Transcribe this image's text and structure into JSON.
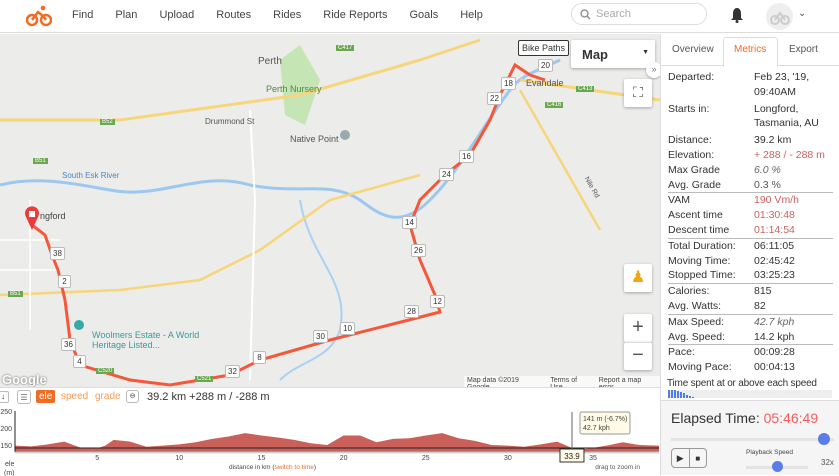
{
  "nav": {
    "links": [
      "Find",
      "Plan",
      "Upload",
      "Routes",
      "Rides",
      "Ride Reports",
      "Goals",
      "Help"
    ],
    "search_placeholder": "Search",
    "brand_color": "#f26b21"
  },
  "map": {
    "type_label": "Map",
    "bike_paths_label": "Bike Paths",
    "places": [
      "Perth",
      "Perth Nursery",
      "Drummond St",
      "Native Point",
      "South Esk River",
      "Evandale",
      "Nile Rd",
      "ngford",
      "Woolmers Estate - A World Heritage Listed..."
    ],
    "roads": [
      "C417",
      "B52",
      "C413",
      "C416",
      "B51",
      "C520",
      "C521",
      "B51"
    ],
    "attribution": [
      "Map data ©2019 Google",
      "Terms of Use",
      "Report a map error"
    ],
    "google": "Google",
    "markers": [
      "38",
      "2",
      "36",
      "4",
      "32",
      "8",
      "30",
      "10",
      "28",
      "12",
      "26",
      "14",
      "24",
      "16",
      "22",
      "18",
      "20"
    ],
    "route_color": "#f4573a"
  },
  "panel": {
    "tabs": [
      "Overview",
      "Metrics",
      "Export"
    ],
    "active_tab": "Metrics",
    "metrics": [
      {
        "k": "Departed:",
        "v": "Feb 23, '19, 09:40AM"
      },
      {
        "k": "Starts in:",
        "v": "Longford, Tasmania, AU"
      },
      {
        "k": "Distance:",
        "v": "39.2 km"
      },
      {
        "k": "Elevation:",
        "v": "+ 288 / - 288 m"
      },
      {
        "k": "Max Grade",
        "v": "6.0 %"
      },
      {
        "k": "Avg. Grade",
        "v": "0.3 %"
      },
      {
        "k": "VAM",
        "v": "190 Vm/h"
      },
      {
        "k": "Ascent time",
        "v": "01:30:48"
      },
      {
        "k": "Descent time",
        "v": "01:14:54"
      },
      {
        "k": "Total Duration:",
        "v": "06:11:05"
      },
      {
        "k": "Moving Time:",
        "v": "02:45:42"
      },
      {
        "k": "Stopped Time:",
        "v": "03:25:23"
      },
      {
        "k": "Calories:",
        "v": "815"
      },
      {
        "k": "Avg. Watts:",
        "v": "82"
      },
      {
        "k": "Max Speed:",
        "v": "42.7 kph"
      },
      {
        "k": "Avg. Speed:",
        "v": "14.2 kph"
      },
      {
        "k": "Pace:",
        "v": "00:09:28"
      },
      {
        "k": "Moving Pace:",
        "v": "00:04:13"
      }
    ],
    "speed_hist_title": "Time spent at or above each speed",
    "elapsed_label": "Elapsed Time:",
    "elapsed_value": "05:46:49",
    "playback_label": "Playback Speed",
    "playback_speed": "32x",
    "progress": 0.94,
    "speed_slider": 0.5
  },
  "elevation": {
    "modes": [
      "ele",
      "speed",
      "grade"
    ],
    "active_mode": "ele",
    "summary": "39.2 km +288 m / -288 m",
    "y_ticks": [
      "250",
      "200",
      "150"
    ],
    "x_ticks": [
      "5",
      "10",
      "15",
      "20",
      "25",
      "30",
      "35"
    ],
    "y_label": "ele",
    "y_unit": "(m)",
    "x_label": "distance in km (",
    "switch_label": "switch to time",
    "x_label_end": ")",
    "zoom_hint": "drag to zoom in",
    "cursor_km": "33.9",
    "tooltip": [
      "141 m (-6.7%)",
      "42.7 kph"
    ],
    "fill_color": "#c9605a",
    "profile_km": [
      0,
      1,
      2,
      3,
      4,
      5,
      5.5,
      6,
      7,
      8,
      9,
      10,
      11,
      12,
      13,
      14,
      15,
      16,
      17,
      18,
      19,
      20,
      21,
      22,
      23,
      24,
      25,
      26,
      27,
      28,
      29,
      30,
      31,
      32,
      33,
      33.9,
      34.5,
      35,
      36,
      37,
      38,
      39.2
    ],
    "profile_m": [
      148,
      146,
      152,
      160,
      142,
      140,
      148,
      165,
      160,
      145,
      148,
      152,
      158,
      168,
      175,
      185,
      178,
      172,
      165,
      155,
      150,
      178,
      178,
      158,
      168,
      170,
      178,
      185,
      170,
      162,
      150,
      148,
      145,
      152,
      160,
      141,
      138,
      140,
      148,
      158,
      150,
      148
    ]
  }
}
